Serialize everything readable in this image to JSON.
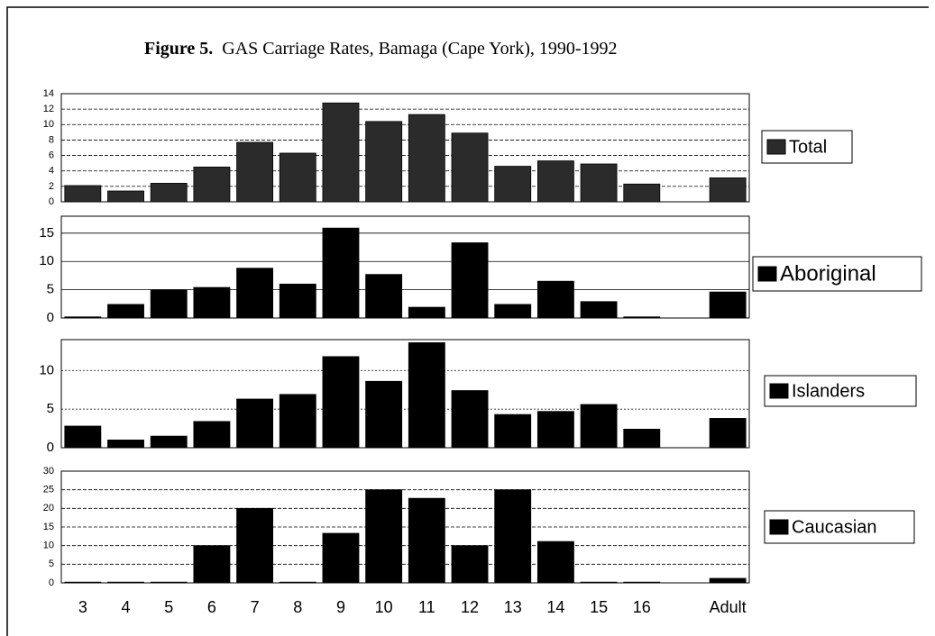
{
  "figure_label": "Figure 5.",
  "title": "GAS Carriage Rates, Bamaga (Cape York), 1990-1992",
  "categories": [
    "3",
    "4",
    "5",
    "6",
    "7",
    "8",
    "9",
    "10",
    "11",
    "12",
    "13",
    "14",
    "15",
    "16",
    null,
    "Adult"
  ],
  "chart_data": [
    {
      "type": "bar",
      "series": [
        {
          "name": "Total",
          "color": "#2b2b2b",
          "values": [
            2.1,
            1.4,
            2.4,
            4.5,
            7.7,
            6.3,
            12.8,
            10.4,
            11.3,
            8.9,
            4.6,
            5.3,
            4.9,
            2.3,
            null,
            3.1
          ]
        }
      ],
      "ylim": [
        0,
        14
      ],
      "yticks": [
        0,
        2,
        4,
        6,
        8,
        10,
        12,
        14
      ],
      "grid": true
    },
    {
      "type": "bar",
      "series": [
        {
          "name": "Aboriginal",
          "color": "#000000",
          "values": [
            0.2,
            2.4,
            5.0,
            5.4,
            8.8,
            6.0,
            15.9,
            7.7,
            1.9,
            13.3,
            2.4,
            6.5,
            2.9,
            0.2,
            null,
            4.6
          ]
        }
      ],
      "ylim": [
        0,
        18
      ],
      "yticks": [
        0,
        5,
        10,
        15
      ],
      "grid": true
    },
    {
      "type": "bar",
      "series": [
        {
          "name": "Islanders",
          "color": "#000000",
          "values": [
            2.8,
            1.0,
            1.5,
            3.4,
            6.3,
            6.9,
            11.8,
            8.6,
            13.6,
            7.4,
            4.3,
            4.7,
            5.6,
            2.4,
            null,
            3.8
          ]
        }
      ],
      "ylim": [
        0,
        14
      ],
      "yticks": [
        0,
        5,
        10
      ],
      "grid": true
    },
    {
      "type": "bar",
      "series": [
        {
          "name": "Caucasian",
          "color": "#000000",
          "values": [
            0.2,
            0.2,
            0.2,
            10,
            20,
            0.2,
            13.3,
            25,
            22.7,
            10,
            25,
            11.1,
            0.2,
            0.2,
            null,
            1.2
          ]
        }
      ],
      "ylim": [
        0,
        30
      ],
      "yticks": [
        0,
        5,
        10,
        15,
        20,
        25,
        30
      ],
      "grid": true
    }
  ]
}
